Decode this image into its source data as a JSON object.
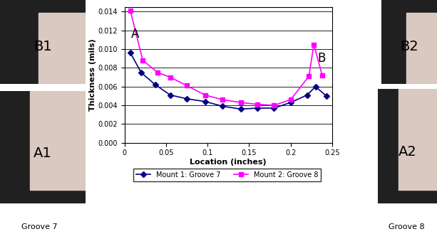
{
  "chart_data": {
    "type": "line",
    "x_label": "Location (inches)",
    "y_label": "Thickness (mils)",
    "annotations": [
      "A",
      "B"
    ],
    "series": [
      {
        "name": "Mount 1: Groove 7",
        "color": "#000080",
        "marker": "diamond",
        "line_style": "solid",
        "x": [
          0.007,
          0.02,
          0.037,
          0.055,
          0.075,
          0.097,
          0.118,
          0.14,
          0.16,
          0.18,
          0.2,
          0.22,
          0.23,
          0.243
        ],
        "values": [
          0.0096,
          0.0075,
          0.0062,
          0.0051,
          0.0047,
          0.0044,
          0.0039,
          0.0036,
          0.0037,
          0.0037,
          0.0043,
          0.0051,
          0.006,
          0.005
        ]
      },
      {
        "name": "Mount 2: Groove 8",
        "color": "#ff00ff",
        "marker": "square",
        "line_style": "solid",
        "x": [
          0.007,
          0.022,
          0.04,
          0.055,
          0.075,
          0.097,
          0.118,
          0.14,
          0.16,
          0.18,
          0.2,
          0.222,
          0.228,
          0.238
        ],
        "values": [
          0.0141,
          0.0088,
          0.0075,
          0.007,
          0.0061,
          0.0051,
          0.0046,
          0.0043,
          0.0041,
          0.004,
          0.0046,
          0.0071,
          0.0105,
          0.0072
        ]
      }
    ],
    "xlim": [
      0,
      0.25
    ],
    "xticks": [
      0,
      0.05,
      0.1,
      0.15,
      0.2,
      0.25
    ],
    "ylim": [
      0,
      0.0145
    ],
    "yticks": [
      {
        "value": 0,
        "label": "0.000"
      },
      0.002,
      0.004,
      0.006,
      0.008,
      {
        "value": 0.01,
        "label": "0.010"
      },
      0.012,
      0.014
    ],
    "grid": true,
    "legend": "bottom"
  },
  "images": {
    "left": {
      "top_label": "B1",
      "bottom_label": "A1",
      "caption": "Groove 7"
    },
    "right": {
      "top_label": "B2",
      "bottom_label": "A2",
      "caption": "Groove 8"
    }
  }
}
